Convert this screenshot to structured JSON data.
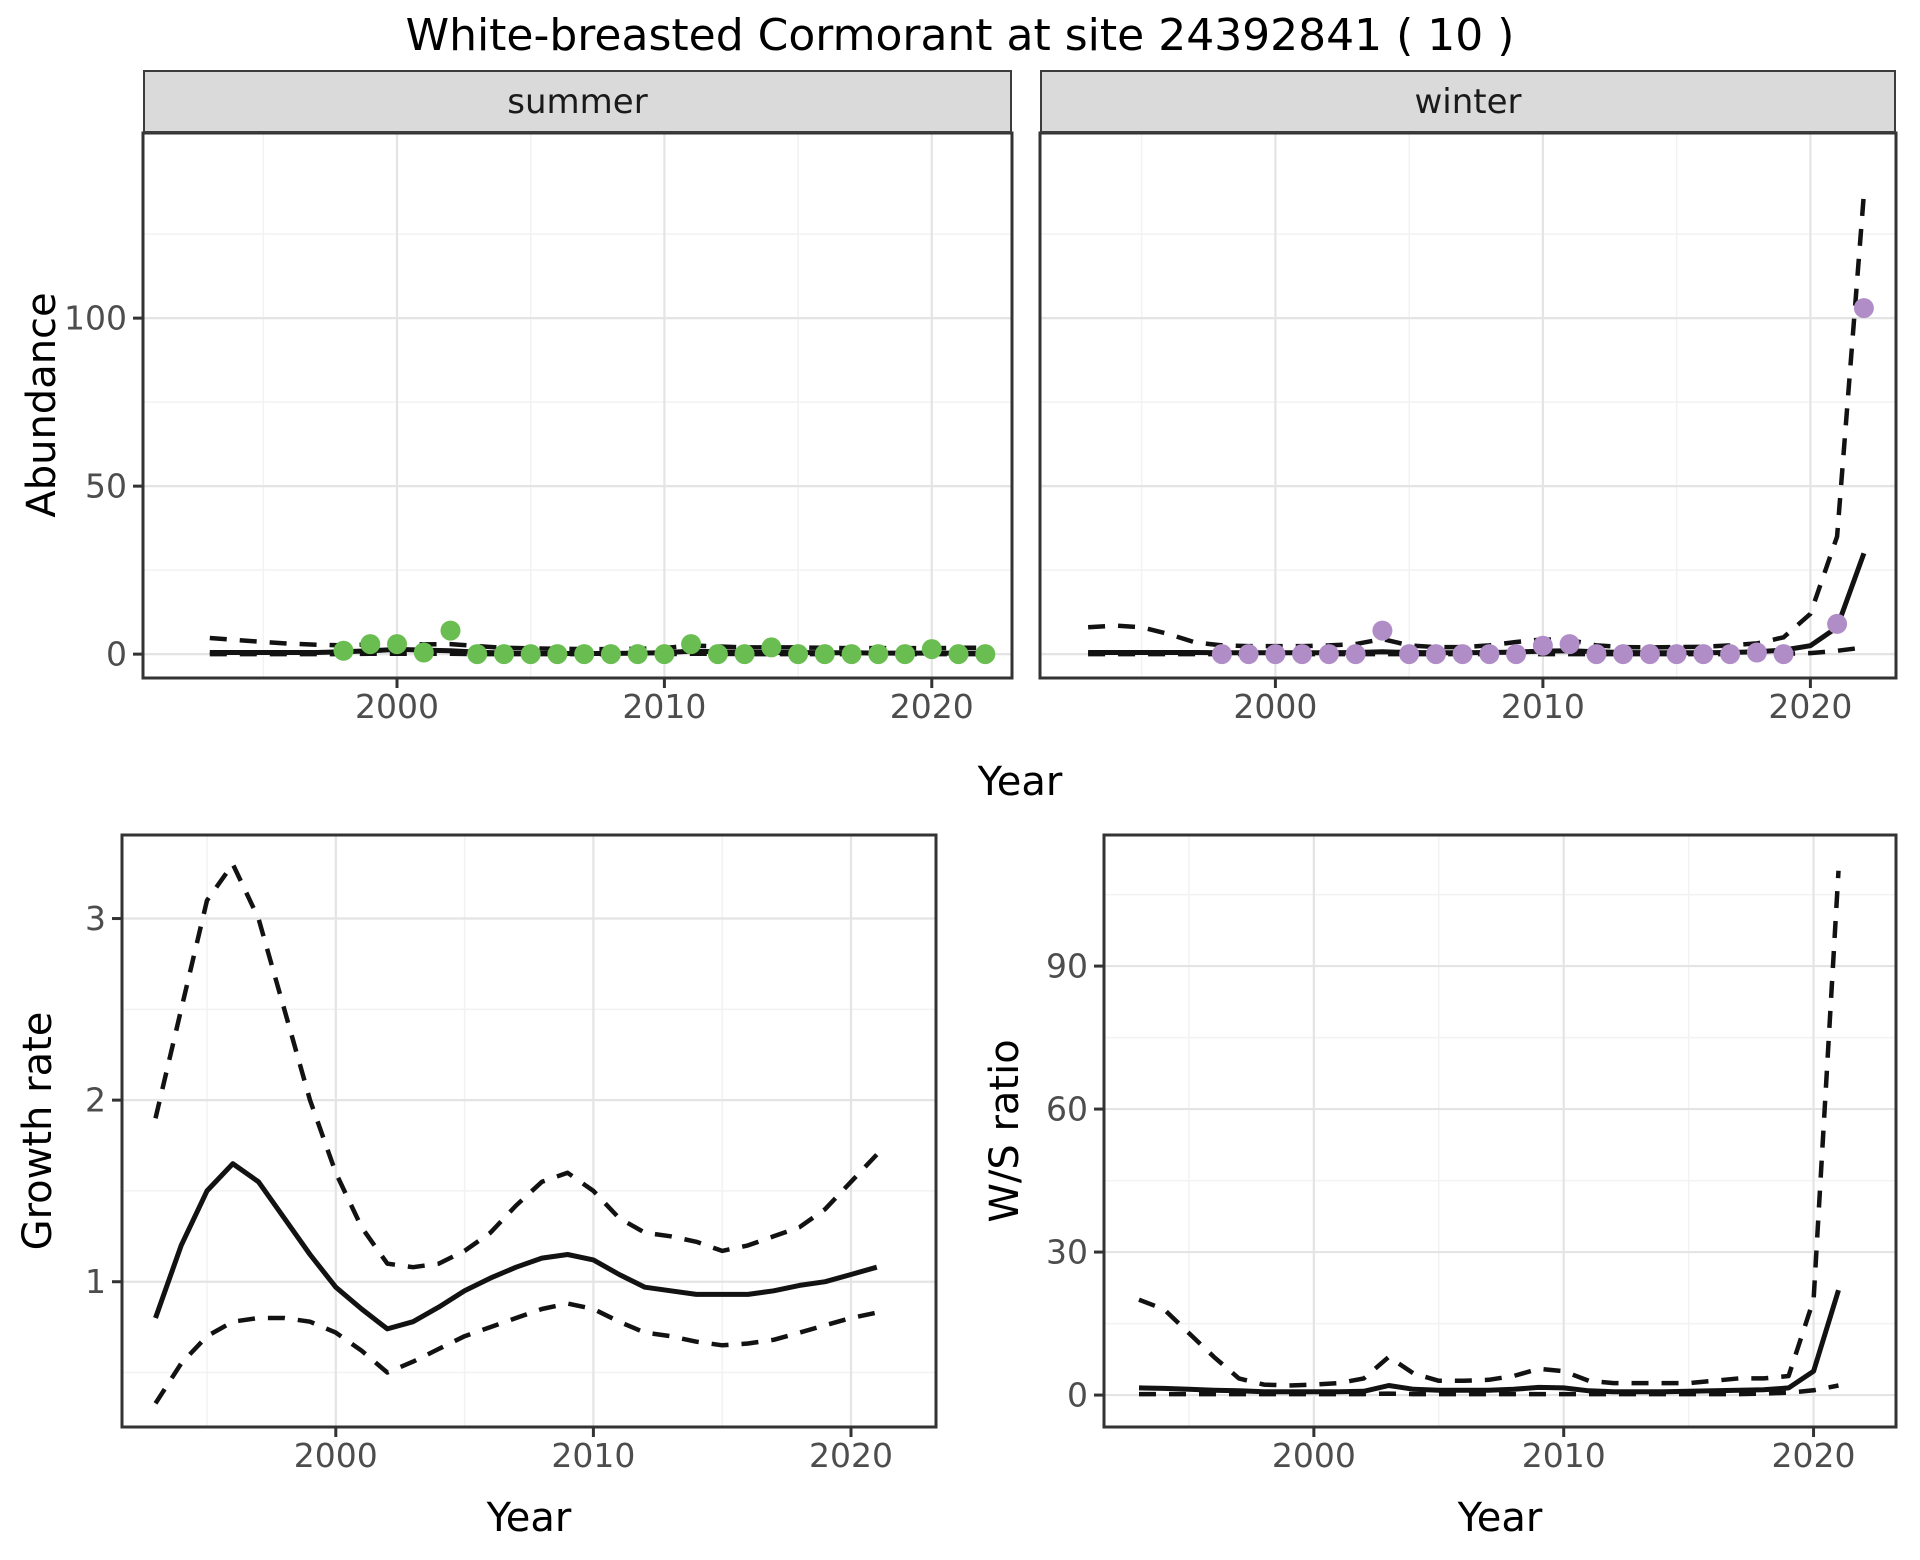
{
  "title": "White-breasted Cormorant at site 24392841 ( 10 )",
  "axis_labels": {
    "x": "Year",
    "y_abundance": "Abundance",
    "y_growth": "Growth rate",
    "y_ws": "W/S ratio"
  },
  "facets": {
    "summer": "summer",
    "winter": "winter"
  },
  "style": {
    "summer_point_color": "#6ABD51",
    "winter_point_color": "#B18DC7",
    "line_color": "#121212",
    "tick_label_color": "#4D4D4D",
    "strip_bg": "#DADADA",
    "panel_border": "#333333",
    "grid_major": "#E4E4E4",
    "grid_minor": "#F2F2F2"
  },
  "chart_data": [
    {
      "id": "abundance_summer",
      "type": "line+scatter",
      "facet": "summer",
      "x_axis": {
        "label": "Year",
        "ticks": [
          2000,
          2010,
          2020
        ],
        "minor": [
          1995,
          2005,
          2015
        ],
        "lim": [
          1990.5,
          2023.0
        ]
      },
      "y_axis": {
        "label": "Abundance",
        "ticks": [
          0,
          50,
          100
        ],
        "minor": [
          25,
          75,
          125
        ],
        "lim": [
          -7.1,
          155.1
        ],
        "show_labels": true
      },
      "series": [
        {
          "name": "upper_ci",
          "style": "dashed",
          "x": [
            1993,
            1994,
            1995,
            1996,
            1997,
            1998,
            1999,
            2000,
            2001,
            2002,
            2003,
            2004,
            2005,
            2006,
            2007,
            2008,
            2009,
            2010,
            2011,
            2012,
            2013,
            2014,
            2015,
            2016,
            2017,
            2018,
            2019,
            2020,
            2021,
            2022
          ],
          "values": [
            4.8,
            4.2,
            3.6,
            3.1,
            2.8,
            2.6,
            2.9,
            3.2,
            2.9,
            3.0,
            2.4,
            1.9,
            1.7,
            1.6,
            1.5,
            1.5,
            1.6,
            1.8,
            2.6,
            2.3,
            2.0,
            2.0,
            2.0,
            1.9,
            1.8,
            1.8,
            1.8,
            1.8,
            1.9,
            1.9
          ]
        },
        {
          "name": "lower_ci",
          "style": "dashed",
          "x": [
            1993,
            1994,
            1995,
            1996,
            1997,
            1998,
            1999,
            2000,
            2001,
            2002,
            2003,
            2004,
            2005,
            2006,
            2007,
            2008,
            2009,
            2010,
            2011,
            2012,
            2013,
            2014,
            2015,
            2016,
            2017,
            2018,
            2019,
            2020,
            2021,
            2022
          ],
          "values": [
            0,
            0,
            0,
            0,
            0,
            0,
            0.1,
            0.1,
            0.1,
            0.1,
            0,
            0,
            0,
            0,
            0,
            0,
            0,
            0,
            0.1,
            0.1,
            0,
            0,
            0,
            0,
            0,
            0,
            0,
            0,
            0,
            0
          ]
        },
        {
          "name": "fit",
          "style": "solid",
          "x": [
            1993,
            1994,
            1995,
            1996,
            1997,
            1998,
            1999,
            2000,
            2001,
            2002,
            2003,
            2004,
            2005,
            2006,
            2007,
            2008,
            2009,
            2010,
            2011,
            2012,
            2013,
            2014,
            2015,
            2016,
            2017,
            2018,
            2019,
            2020,
            2021,
            2022
          ],
          "values": [
            0.5,
            0.5,
            0.5,
            0.5,
            0.5,
            0.7,
            1.0,
            1.4,
            1.2,
            1.0,
            0.6,
            0.3,
            0.2,
            0.2,
            0.2,
            0.2,
            0.3,
            0.4,
            0.9,
            0.7,
            0.5,
            0.5,
            0.5,
            0.4,
            0.4,
            0.3,
            0.3,
            0.3,
            0.3,
            0.3
          ]
        },
        {
          "name": "observations",
          "style": "points",
          "color": "#6ABD51",
          "x": [
            1998,
            1999,
            2000,
            2001,
            2002,
            2003,
            2004,
            2005,
            2006,
            2007,
            2008,
            2009,
            2010,
            2011,
            2012,
            2013,
            2014,
            2015,
            2016,
            2017,
            2018,
            2019,
            2020,
            2021,
            2022
          ],
          "values": [
            1,
            3,
            3,
            0.5,
            7,
            0,
            0,
            0,
            0,
            0,
            0,
            0,
            0,
            3,
            0,
            0,
            2,
            0,
            0,
            0,
            0,
            0,
            1.5,
            0,
            0
          ]
        }
      ]
    },
    {
      "id": "abundance_winter",
      "type": "line+scatter",
      "facet": "winter",
      "x_axis": {
        "label": "Year",
        "ticks": [
          2000,
          2010,
          2020
        ],
        "minor": [
          1995,
          2005,
          2015
        ],
        "lim": [
          1991.2,
          2023.2
        ]
      },
      "y_axis": {
        "label": "Abundance",
        "ticks": [
          0,
          50,
          100
        ],
        "minor": [
          25,
          75,
          125
        ],
        "lim": [
          -7.1,
          155.1
        ],
        "show_labels": false
      },
      "series": [
        {
          "name": "upper_ci",
          "style": "dashed",
          "x": [
            1993,
            1994,
            1995,
            1996,
            1997,
            1998,
            1999,
            2000,
            2001,
            2002,
            2003,
            2004,
            2005,
            2006,
            2007,
            2008,
            2009,
            2010,
            2011,
            2012,
            2013,
            2014,
            2015,
            2016,
            2017,
            2018,
            2019,
            2020,
            2021,
            2022
          ],
          "values": [
            8,
            8.5,
            8,
            6,
            3.5,
            2.6,
            2.4,
            2.4,
            2.4,
            2.6,
            3.0,
            4.5,
            2.6,
            2.1,
            2.1,
            2.6,
            3.6,
            4.4,
            4.2,
            2.6,
            2.1,
            2.0,
            2.1,
            2.2,
            2.6,
            3.2,
            5,
            12,
            35,
            137
          ]
        },
        {
          "name": "lower_ci",
          "style": "dashed",
          "x": [
            1993,
            1994,
            1995,
            1996,
            1997,
            1998,
            1999,
            2000,
            2001,
            2002,
            2003,
            2004,
            2005,
            2006,
            2007,
            2008,
            2009,
            2010,
            2011,
            2012,
            2013,
            2014,
            2015,
            2016,
            2017,
            2018,
            2019,
            2020,
            2021,
            2022
          ],
          "values": [
            0,
            0,
            0,
            0,
            0,
            0,
            0,
            0,
            0,
            0,
            0,
            0,
            0,
            0,
            0,
            0,
            0,
            0,
            0,
            0,
            0,
            0,
            0,
            0,
            0,
            0,
            0.1,
            0.3,
            1,
            2
          ]
        },
        {
          "name": "fit",
          "style": "solid",
          "x": [
            1993,
            1994,
            1995,
            1996,
            1997,
            1998,
            1999,
            2000,
            2001,
            2002,
            2003,
            2004,
            2005,
            2006,
            2007,
            2008,
            2009,
            2010,
            2011,
            2012,
            2013,
            2014,
            2015,
            2016,
            2017,
            2018,
            2019,
            2020,
            2021,
            2022
          ],
          "values": [
            0.5,
            0.5,
            0.5,
            0.5,
            0.5,
            0.4,
            0.4,
            0.4,
            0.4,
            0.4,
            0.5,
            0.7,
            0.5,
            0.4,
            0.4,
            0.5,
            0.6,
            0.9,
            1.0,
            0.7,
            0.5,
            0.4,
            0.4,
            0.4,
            0.5,
            0.7,
            1.2,
            2.5,
            8,
            30
          ]
        },
        {
          "name": "observations",
          "style": "points",
          "color": "#B18DC7",
          "x": [
            1998,
            1999,
            2000,
            2001,
            2002,
            2003,
            2004,
            2005,
            2006,
            2007,
            2008,
            2009,
            2010,
            2011,
            2012,
            2013,
            2014,
            2015,
            2016,
            2017,
            2018,
            2019,
            2021,
            2022
          ],
          "values": [
            0,
            0,
            0,
            0,
            0,
            0,
            7,
            0,
            0,
            0,
            0,
            0,
            2.5,
            3,
            0,
            0,
            0,
            0,
            0,
            0,
            0.5,
            0,
            9,
            103
          ]
        }
      ]
    },
    {
      "id": "growth_rate",
      "type": "line",
      "facet": null,
      "x_axis": {
        "label": "Year",
        "ticks": [
          2000,
          2010,
          2020
        ],
        "minor": [
          1995,
          2005,
          2015
        ],
        "lim": [
          1991.7,
          2023.3
        ]
      },
      "y_axis": {
        "label": "Growth rate",
        "ticks": [
          1,
          2,
          3
        ],
        "minor": [
          0.5,
          1.5,
          2.5
        ],
        "lim": [
          0.2,
          3.46
        ],
        "show_labels": true
      },
      "series": [
        {
          "name": "upper_ci",
          "style": "dashed",
          "x": [
            1993,
            1994,
            1995,
            1996,
            1997,
            1998,
            1999,
            2000,
            2001,
            2002,
            2003,
            2004,
            2005,
            2006,
            2007,
            2008,
            2009,
            2010,
            2011,
            2012,
            2013,
            2014,
            2015,
            2016,
            2017,
            2018,
            2019,
            2020,
            2021
          ],
          "values": [
            1.9,
            2.5,
            3.1,
            3.3,
            3.0,
            2.5,
            2.0,
            1.6,
            1.3,
            1.1,
            1.08,
            1.1,
            1.17,
            1.27,
            1.42,
            1.55,
            1.6,
            1.5,
            1.35,
            1.27,
            1.25,
            1.22,
            1.17,
            1.2,
            1.25,
            1.3,
            1.4,
            1.55,
            1.7
          ]
        },
        {
          "name": "lower_ci",
          "style": "dashed",
          "x": [
            1993,
            1994,
            1995,
            1996,
            1997,
            1998,
            1999,
            2000,
            2001,
            2002,
            2003,
            2004,
            2005,
            2006,
            2007,
            2008,
            2009,
            2010,
            2011,
            2012,
            2013,
            2014,
            2015,
            2016,
            2017,
            2018,
            2019,
            2020,
            2021
          ],
          "values": [
            0.33,
            0.55,
            0.7,
            0.78,
            0.8,
            0.8,
            0.78,
            0.72,
            0.62,
            0.5,
            0.56,
            0.63,
            0.7,
            0.75,
            0.8,
            0.85,
            0.88,
            0.85,
            0.78,
            0.72,
            0.7,
            0.67,
            0.65,
            0.66,
            0.68,
            0.72,
            0.76,
            0.8,
            0.83
          ]
        },
        {
          "name": "fit",
          "style": "solid",
          "x": [
            1993,
            1994,
            1995,
            1996,
            1997,
            1998,
            1999,
            2000,
            2001,
            2002,
            2003,
            2004,
            2005,
            2006,
            2007,
            2008,
            2009,
            2010,
            2011,
            2012,
            2013,
            2014,
            2015,
            2016,
            2017,
            2018,
            2019,
            2020,
            2021
          ],
          "values": [
            0.8,
            1.2,
            1.5,
            1.65,
            1.55,
            1.35,
            1.15,
            0.97,
            0.85,
            0.74,
            0.78,
            0.86,
            0.95,
            1.02,
            1.08,
            1.13,
            1.15,
            1.12,
            1.04,
            0.97,
            0.95,
            0.93,
            0.93,
            0.93,
            0.95,
            0.98,
            1.0,
            1.04,
            1.08
          ]
        }
      ]
    },
    {
      "id": "ws_ratio",
      "type": "line",
      "facet": null,
      "x_axis": {
        "label": "Year",
        "ticks": [
          2000,
          2010,
          2020
        ],
        "minor": [
          1995,
          2005,
          2015
        ],
        "lim": [
          1991.6,
          2023.3
        ]
      },
      "y_axis": {
        "label": "W/S ratio",
        "ticks": [
          0,
          30,
          60,
          90
        ],
        "minor": [
          15,
          45,
          75,
          105
        ],
        "lim": [
          -6.7,
          117.5
        ],
        "show_labels": true
      },
      "series": [
        {
          "name": "upper_ci",
          "style": "dashed",
          "x": [
            1993,
            1994,
            1995,
            1996,
            1997,
            1998,
            1999,
            2000,
            2001,
            2002,
            2003,
            2004,
            2005,
            2006,
            2007,
            2008,
            2009,
            2010,
            2011,
            2012,
            2013,
            2014,
            2015,
            2016,
            2017,
            2018,
            2019,
            2020,
            2021
          ],
          "values": [
            20,
            18,
            13,
            8,
            3.5,
            2.2,
            2.0,
            2.2,
            2.5,
            3.5,
            8,
            4.5,
            3.0,
            3.0,
            3.2,
            4.0,
            5.5,
            5.0,
            3.0,
            2.5,
            2.5,
            2.5,
            2.5,
            3.0,
            3.5,
            3.5,
            4.0,
            20,
            110
          ]
        },
        {
          "name": "lower_ci",
          "style": "dashed",
          "x": [
            1993,
            1994,
            1995,
            1996,
            1997,
            1998,
            1999,
            2000,
            2001,
            2002,
            2003,
            2004,
            2005,
            2006,
            2007,
            2008,
            2009,
            2010,
            2011,
            2012,
            2013,
            2014,
            2015,
            2016,
            2017,
            2018,
            2019,
            2020,
            2021
          ],
          "values": [
            0.2,
            0.2,
            0.2,
            0.2,
            0.2,
            0.2,
            0.2,
            0.2,
            0.2,
            0.2,
            0.3,
            0.2,
            0.2,
            0.2,
            0.2,
            0.2,
            0.2,
            0.2,
            0.2,
            0.2,
            0.2,
            0.2,
            0.2,
            0.2,
            0.2,
            0.3,
            0.5,
            1.0,
            2.0
          ]
        },
        {
          "name": "fit",
          "style": "solid",
          "x": [
            1993,
            1994,
            1995,
            1996,
            1997,
            1998,
            1999,
            2000,
            2001,
            2002,
            2003,
            2004,
            2005,
            2006,
            2007,
            2008,
            2009,
            2010,
            2011,
            2012,
            2013,
            2014,
            2015,
            2016,
            2017,
            2018,
            2019,
            2020,
            2021
          ],
          "values": [
            1.5,
            1.4,
            1.2,
            1.0,
            0.9,
            0.7,
            0.7,
            0.7,
            0.7,
            0.8,
            2.0,
            1.2,
            1.0,
            1.0,
            1.0,
            1.2,
            1.6,
            1.5,
            0.9,
            0.7,
            0.7,
            0.7,
            0.8,
            0.9,
            1.0,
            1.1,
            1.5,
            5,
            22
          ]
        }
      ]
    }
  ]
}
